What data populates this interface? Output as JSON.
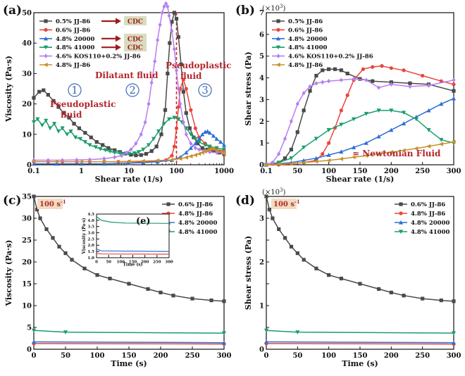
{
  "colors": {
    "gray": "#4a4a4a",
    "red": "#e8453c",
    "blue": "#2f6fd6",
    "green": "#1a9e6a",
    "purple": "#b77ef0",
    "gold": "#c8902a",
    "annot_red": "#b3262e",
    "cdc_bg": "#d9ddc0",
    "ref_line": "#d22a2a"
  },
  "panel_letters": {
    "a": "(a)",
    "b": "(b)",
    "c": "(c)",
    "d": "(d)",
    "e": "(e)"
  },
  "legend_cdc": "CDC",
  "annotations": {
    "regions": [
      "1",
      "2",
      "3"
    ],
    "dilatant": "Dilatant fluid",
    "pseudo_left": [
      "Pseudoplastic",
      "fluid"
    ],
    "pseudo_right": [
      "Pseudoplastic",
      "fluid"
    ],
    "newtonian": "≈ Newtonian Fluid",
    "rate_badge": "100 s",
    "rate_badge_sup": "-1",
    "multiplier_b": "(×10",
    "multiplier_b_sup": "3",
    "multiplier_d": "(×10",
    "multiplier_d_sup": "3"
  },
  "chart_data": [
    {
      "id": "a",
      "type": "line",
      "xscale": "log",
      "xlim": [
        0.1,
        1000
      ],
      "ylim": [
        0,
        50
      ],
      "xticks": [
        0.1,
        1,
        10,
        100,
        1000
      ],
      "xticklabels": [
        "0.1",
        "1",
        "10",
        "100",
        "1000"
      ],
      "yticks": [
        0,
        10,
        20,
        30,
        40,
        50
      ],
      "xlabel": "Shear rate (1/s)",
      "ylabel": "Viscosity (Pa·s)",
      "reference_x": 100,
      "series": [
        {
          "name": "0.5% JJ-86",
          "color": "gray",
          "marker": "s",
          "cdc": true,
          "x": [
            0.1,
            0.13,
            0.16,
            0.2,
            0.26,
            0.33,
            0.42,
            0.55,
            0.7,
            0.9,
            1.2,
            1.6,
            2.1,
            2.8,
            3.7,
            5,
            6.5,
            8.5,
            11,
            14,
            18,
            23,
            30,
            38,
            48,
            58,
            65,
            72,
            80,
            90,
            100,
            110,
            125,
            140,
            160,
            190,
            230,
            280,
            350,
            450,
            600,
            800,
            1000
          ],
          "y": [
            22,
            24,
            24.5,
            23,
            21,
            19,
            17,
            15.5,
            13.5,
            12,
            10.5,
            9,
            7.5,
            6.5,
            5.5,
            4.8,
            4.2,
            3.7,
            3.3,
            3.1,
            3.2,
            3.6,
            4.5,
            6,
            10,
            18,
            30,
            40,
            47,
            50,
            48,
            42,
            33,
            24,
            17,
            12,
            9,
            7,
            5.5,
            5,
            4.5,
            4,
            3.5
          ]
        },
        {
          "name": "0.6% JJ-86",
          "color": "red",
          "marker": "o",
          "cdc": false,
          "x": [
            0.1,
            0.2,
            0.4,
            0.8,
            1.5,
            3,
            6,
            10,
            20,
            40,
            60,
            80,
            90,
            100,
            110,
            120,
            140,
            160,
            200,
            250,
            300,
            400,
            500,
            700,
            1000
          ],
          "y": [
            1,
            1,
            1,
            1,
            1,
            1,
            1,
            1,
            1,
            1.2,
            1.5,
            3,
            6,
            12,
            19,
            25,
            28,
            25,
            18,
            12,
            9,
            7,
            6,
            5,
            4.5
          ]
        },
        {
          "name": "4.8% 20000",
          "color": "blue",
          "marker": "^",
          "cdc": true,
          "x": [
            0.1,
            0.3,
            1,
            3,
            10,
            20,
            40,
            80,
            120,
            160,
            200,
            250,
            300,
            350,
            400,
            450,
            500,
            600,
            700,
            850,
            1000
          ],
          "y": [
            0.3,
            0.3,
            0.3,
            0.3,
            0.5,
            0.7,
            1,
            1.5,
            2.5,
            4,
            5.5,
            7,
            8.5,
            10,
            10.8,
            11,
            10.5,
            9.5,
            8.5,
            7.5,
            6.5
          ]
        },
        {
          "name": "4.8% 41000",
          "color": "green",
          "marker": "v",
          "cdc": true,
          "x": [
            0.1,
            0.12,
            0.15,
            0.18,
            0.22,
            0.27,
            0.33,
            0.4,
            0.5,
            0.6,
            0.75,
            0.95,
            1.2,
            1.5,
            2,
            2.5,
            3.2,
            4,
            5,
            6.5,
            8,
            10,
            13,
            16,
            20,
            26,
            33,
            42,
            55,
            70,
            90,
            110,
            130,
            160,
            200,
            250,
            300,
            400,
            500,
            700,
            1000
          ],
          "y": [
            14,
            15,
            13,
            14.5,
            12,
            13.5,
            11,
            12,
            10,
            11,
            9,
            8.5,
            7.5,
            6.5,
            5.8,
            5.2,
            4.8,
            4.4,
            4,
            3.8,
            3.6,
            3.6,
            3.8,
            4.2,
            5,
            6.5,
            8.5,
            11,
            13.5,
            15,
            15.5,
            15,
            14,
            12,
            10,
            8.5,
            7.5,
            6.5,
            6,
            5.5,
            5
          ]
        },
        {
          "name": "4.6% KOS110+0.2% JJ-86",
          "color": "purple",
          "marker": "D",
          "cdc": false,
          "x": [
            0.1,
            0.2,
            0.4,
            0.8,
            1.5,
            3,
            5,
            7,
            9,
            11,
            14,
            18,
            22,
            26,
            30,
            35,
            40,
            45,
            50,
            55,
            60,
            65,
            70,
            80,
            90,
            100,
            110,
            120,
            140,
            160,
            200,
            250,
            300,
            400,
            500,
            700,
            1000
          ],
          "y": [
            1.5,
            1.5,
            1.5,
            1.6,
            1.7,
            2,
            2.5,
            3,
            4,
            5,
            7,
            10,
            14,
            20,
            27,
            34,
            41,
            46,
            50,
            52,
            53,
            52,
            49,
            44,
            38,
            31,
            25,
            20,
            14,
            10,
            7,
            5.5,
            5,
            4.5,
            4.2,
            4,
            4
          ]
        },
        {
          "name": "4.8% JJ-86",
          "color": "gold",
          "marker": "<",
          "cdc": false,
          "x": [
            0.1,
            0.3,
            1,
            3,
            10,
            20,
            40,
            80,
            120,
            160,
            200,
            250,
            300,
            350,
            400,
            450,
            500,
            550,
            600,
            700,
            850,
            1000
          ],
          "y": [
            1,
            1,
            1,
            1,
            1.1,
            1.2,
            1.4,
            1.6,
            2,
            2.4,
            2.8,
            3.2,
            3.6,
            4,
            4.4,
            4.8,
            5.1,
            5.3,
            5.2,
            4.8,
            4.2,
            3.6
          ]
        }
      ]
    },
    {
      "id": "b",
      "type": "line",
      "xlim": [
        0.1,
        300
      ],
      "ylim": [
        0,
        7
      ],
      "xticks": [
        0.1,
        50,
        100,
        150,
        200,
        250,
        300
      ],
      "xticklabels": [
        "0.1",
        "50",
        "100",
        "150",
        "200",
        "250",
        "300"
      ],
      "yticks": [
        0,
        1,
        2,
        3,
        4,
        5,
        6,
        7
      ],
      "xlabel": "Shear rate (1/s)",
      "ylabel": "Shear stress (Pa)",
      "series": [
        {
          "name": "0.5% JJ-86",
          "color": "gray",
          "marker": "s",
          "x": [
            0.1,
            10,
            20,
            30,
            40,
            50,
            60,
            70,
            80,
            90,
            100,
            110,
            120,
            130,
            150,
            170,
            200,
            230,
            260,
            300
          ],
          "y": [
            0,
            0.05,
            0.1,
            0.3,
            0.7,
            1.5,
            2.5,
            3.4,
            4.1,
            4.35,
            4.4,
            4.4,
            4.35,
            4.2,
            3.95,
            3.85,
            3.8,
            3.75,
            3.7,
            3.4
          ]
        },
        {
          "name": "0.6% JJ-86",
          "color": "red",
          "marker": "o",
          "x": [
            0.1,
            20,
            40,
            60,
            80,
            90,
            100,
            110,
            120,
            130,
            140,
            155,
            170,
            185,
            200,
            220,
            250,
            280,
            300
          ],
          "y": [
            0,
            0,
            0.05,
            0.1,
            0.2,
            0.5,
            1,
            1.7,
            2.5,
            3.2,
            3.9,
            4.4,
            4.5,
            4.55,
            4.45,
            4.35,
            4.1,
            3.85,
            3.7
          ]
        },
        {
          "name": "4.8% 20000",
          "color": "blue",
          "marker": "^",
          "x": [
            0.1,
            20,
            40,
            60,
            80,
            100,
            120,
            140,
            160,
            180,
            200,
            220,
            240,
            260,
            280,
            300
          ],
          "y": [
            0,
            0.05,
            0.1,
            0.2,
            0.3,
            0.45,
            0.6,
            0.8,
            1,
            1.3,
            1.6,
            1.9,
            2.2,
            2.5,
            2.8,
            3.05
          ]
        },
        {
          "name": "4.8% 41000",
          "color": "green",
          "marker": "v",
          "x": [
            0.1,
            20,
            40,
            60,
            80,
            100,
            120,
            140,
            160,
            180,
            200,
            220,
            240,
            260,
            280,
            300
          ],
          "y": [
            0,
            0.1,
            0.3,
            0.8,
            1.2,
            1.6,
            1.85,
            2.1,
            2.35,
            2.5,
            2.5,
            2.4,
            2.1,
            1.6,
            1.15,
            1
          ]
        },
        {
          "name": "4.6% KOS110+0.2% JJ-86",
          "color": "purple",
          "marker": "D",
          "x": [
            0.1,
            10,
            20,
            30,
            40,
            50,
            60,
            70,
            80,
            90,
            100,
            120,
            140,
            160,
            180,
            200,
            230,
            260,
            300
          ],
          "y": [
            0,
            0.1,
            0.5,
            1.2,
            2,
            2.8,
            3.3,
            3.6,
            3.75,
            3.8,
            3.85,
            3.9,
            3.95,
            3.9,
            3.55,
            3.7,
            3.6,
            3.65,
            3.9
          ]
        },
        {
          "name": "4.8% JJ-86",
          "color": "gold",
          "marker": "<",
          "x": [
            0.1,
            20,
            40,
            60,
            80,
            100,
            120,
            140,
            160,
            180,
            200,
            220,
            240,
            260,
            280,
            300
          ],
          "y": [
            0,
            0.03,
            0.05,
            0.1,
            0.15,
            0.2,
            0.27,
            0.35,
            0.42,
            0.5,
            0.58,
            0.66,
            0.75,
            0.85,
            0.95,
            1.05
          ]
        }
      ]
    },
    {
      "id": "c",
      "type": "line",
      "xlim": [
        0,
        300
      ],
      "ylim": [
        0,
        35
      ],
      "xticks": [
        0,
        50,
        100,
        150,
        200,
        250,
        300
      ],
      "xticklabels": [
        "0",
        "50",
        "100",
        "150",
        "200",
        "250",
        "300"
      ],
      "yticks": [
        0,
        5,
        10,
        15,
        20,
        25,
        30,
        35
      ],
      "xlabel": "Time (s)",
      "ylabel": "Viscosity (Pa·s)",
      "series": [
        {
          "name": "0.6% JJ-86",
          "color": "gray",
          "marker": "s",
          "x": [
            0,
            5,
            10,
            20,
            30,
            40,
            50,
            60,
            80,
            100,
            120,
            150,
            180,
            200,
            220,
            250,
            280,
            300
          ],
          "y": [
            35,
            32,
            30,
            27.5,
            25.5,
            23.5,
            22,
            20.5,
            18.5,
            17,
            16.2,
            15,
            13.8,
            13,
            12.3,
            11.6,
            11.2,
            11
          ]
        },
        {
          "name": "4.8% JJ-86",
          "color": "red",
          "marker": "o",
          "x": [
            0,
            300
          ],
          "y": [
            1.3,
            1.2
          ]
        },
        {
          "name": "4.8% 20000",
          "color": "blue",
          "marker": "^",
          "x": [
            0,
            300
          ],
          "y": [
            1.7,
            1.5
          ]
        },
        {
          "name": "4.8% 41000",
          "color": "green",
          "marker": "v",
          "x": [
            0,
            50,
            300
          ],
          "y": [
            4.3,
            3.9,
            3.7
          ]
        }
      ]
    },
    {
      "id": "e",
      "type": "line",
      "xlim": [
        0,
        300
      ],
      "ylim": [
        1.0,
        4.5
      ],
      "xticks": [
        0,
        50,
        100,
        150,
        200,
        250,
        300
      ],
      "xticklabels": [
        "0",
        "50",
        "100",
        "150",
        "200",
        "250",
        "300"
      ],
      "yticks": [
        1.0,
        1.5,
        2.0,
        2.5,
        3.0,
        3.5,
        4.0,
        4.5
      ],
      "yticklabels": [
        "1.0",
        "1.5",
        "2.0",
        "2.5",
        "3.0",
        "3.5",
        "4.0",
        "4.5"
      ],
      "xlabel": "Time (s)",
      "ylabel": "Viscosity (Pa·s)",
      "series": [
        {
          "name": "4.8% JJ-86",
          "color": "red",
          "x": [
            0,
            20,
            300
          ],
          "y": [
            1.35,
            1.3,
            1.28
          ]
        },
        {
          "name": "4.8% 20000",
          "color": "blue",
          "x": [
            0,
            20,
            300
          ],
          "y": [
            1.7,
            1.55,
            1.5
          ]
        },
        {
          "name": "4.8% 41000",
          "color": "green",
          "x": [
            0,
            20,
            60,
            120,
            300
          ],
          "y": [
            4.3,
            4.0,
            3.85,
            3.78,
            3.75
          ]
        }
      ]
    },
    {
      "id": "d",
      "type": "line",
      "xlim": [
        0,
        300
      ],
      "ylim": [
        0,
        3.5
      ],
      "xticks": [
        0,
        50,
        100,
        150,
        200,
        250,
        300
      ],
      "xticklabels": [
        "0",
        "50",
        "100",
        "150",
        "200",
        "250",
        "300"
      ],
      "yticks": [
        0,
        0.5,
        1,
        1.5,
        2,
        2.5,
        3,
        3.5
      ],
      "yticklabels": [
        "0",
        "",
        "1",
        "",
        "2",
        "",
        "3",
        ""
      ],
      "xlabel": "Time (s)",
      "ylabel": "Shear stress (Pa)",
      "series": [
        {
          "name": "0.6% JJ-86",
          "color": "gray",
          "marker": "s",
          "x": [
            0,
            5,
            10,
            20,
            30,
            40,
            50,
            60,
            80,
            100,
            120,
            150,
            180,
            200,
            220,
            250,
            280,
            300
          ],
          "y": [
            3.5,
            3.2,
            3.0,
            2.75,
            2.55,
            2.35,
            2.2,
            2.05,
            1.85,
            1.7,
            1.62,
            1.5,
            1.38,
            1.3,
            1.23,
            1.16,
            1.12,
            1.1
          ]
        },
        {
          "name": "4.8% JJ-86",
          "color": "red",
          "marker": "o",
          "x": [
            0,
            300
          ],
          "y": [
            0.13,
            0.12
          ]
        },
        {
          "name": "4.8% 20000",
          "color": "blue",
          "marker": "^",
          "x": [
            0,
            300
          ],
          "y": [
            0.17,
            0.15
          ]
        },
        {
          "name": "4.8% 41000",
          "color": "green",
          "marker": "v",
          "x": [
            0,
            50,
            300
          ],
          "y": [
            0.43,
            0.39,
            0.37
          ]
        }
      ]
    }
  ]
}
